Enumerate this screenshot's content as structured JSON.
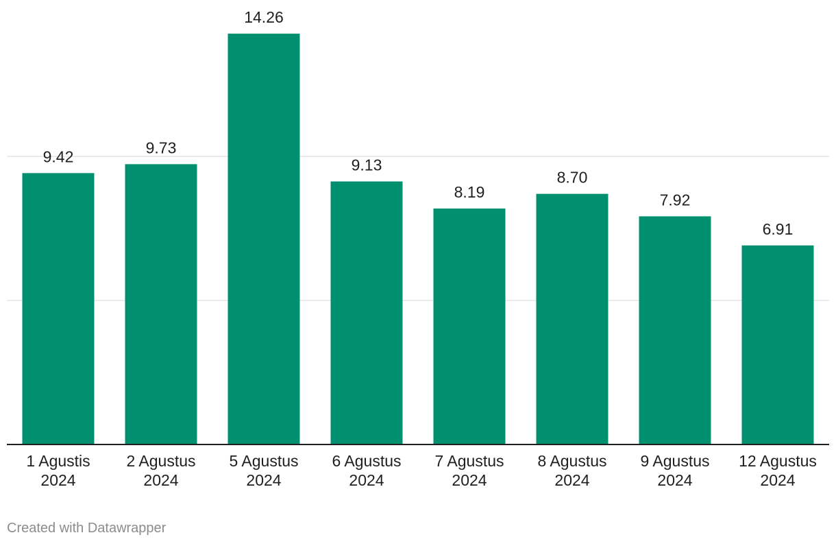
{
  "chart_data": {
    "type": "bar",
    "title": "",
    "xlabel": "",
    "ylabel": "",
    "categories": [
      [
        "1 Agustis",
        "2024"
      ],
      [
        "2 Agustus",
        "2024"
      ],
      [
        "5 Agustus",
        "2024"
      ],
      [
        "6 Agustus",
        "2024"
      ],
      [
        "7 Agustus",
        "2024"
      ],
      [
        "8 Agustus",
        "2024"
      ],
      [
        "9 Agustus",
        "2024"
      ],
      [
        "12 Agustus",
        "2024"
      ]
    ],
    "values": [
      9.42,
      9.73,
      14.26,
      9.13,
      8.19,
      8.7,
      7.92,
      6.91
    ],
    "value_labels": [
      "9.42",
      "9.73",
      "14.26",
      "9.13",
      "8.19",
      "8.70",
      "7.92",
      "6.91"
    ],
    "ylim": [
      0,
      15
    ],
    "gridlines": [
      5,
      10
    ],
    "grid": true,
    "bar_color": "#00906f"
  },
  "footer": {
    "credit": "Created with Datawrapper"
  }
}
